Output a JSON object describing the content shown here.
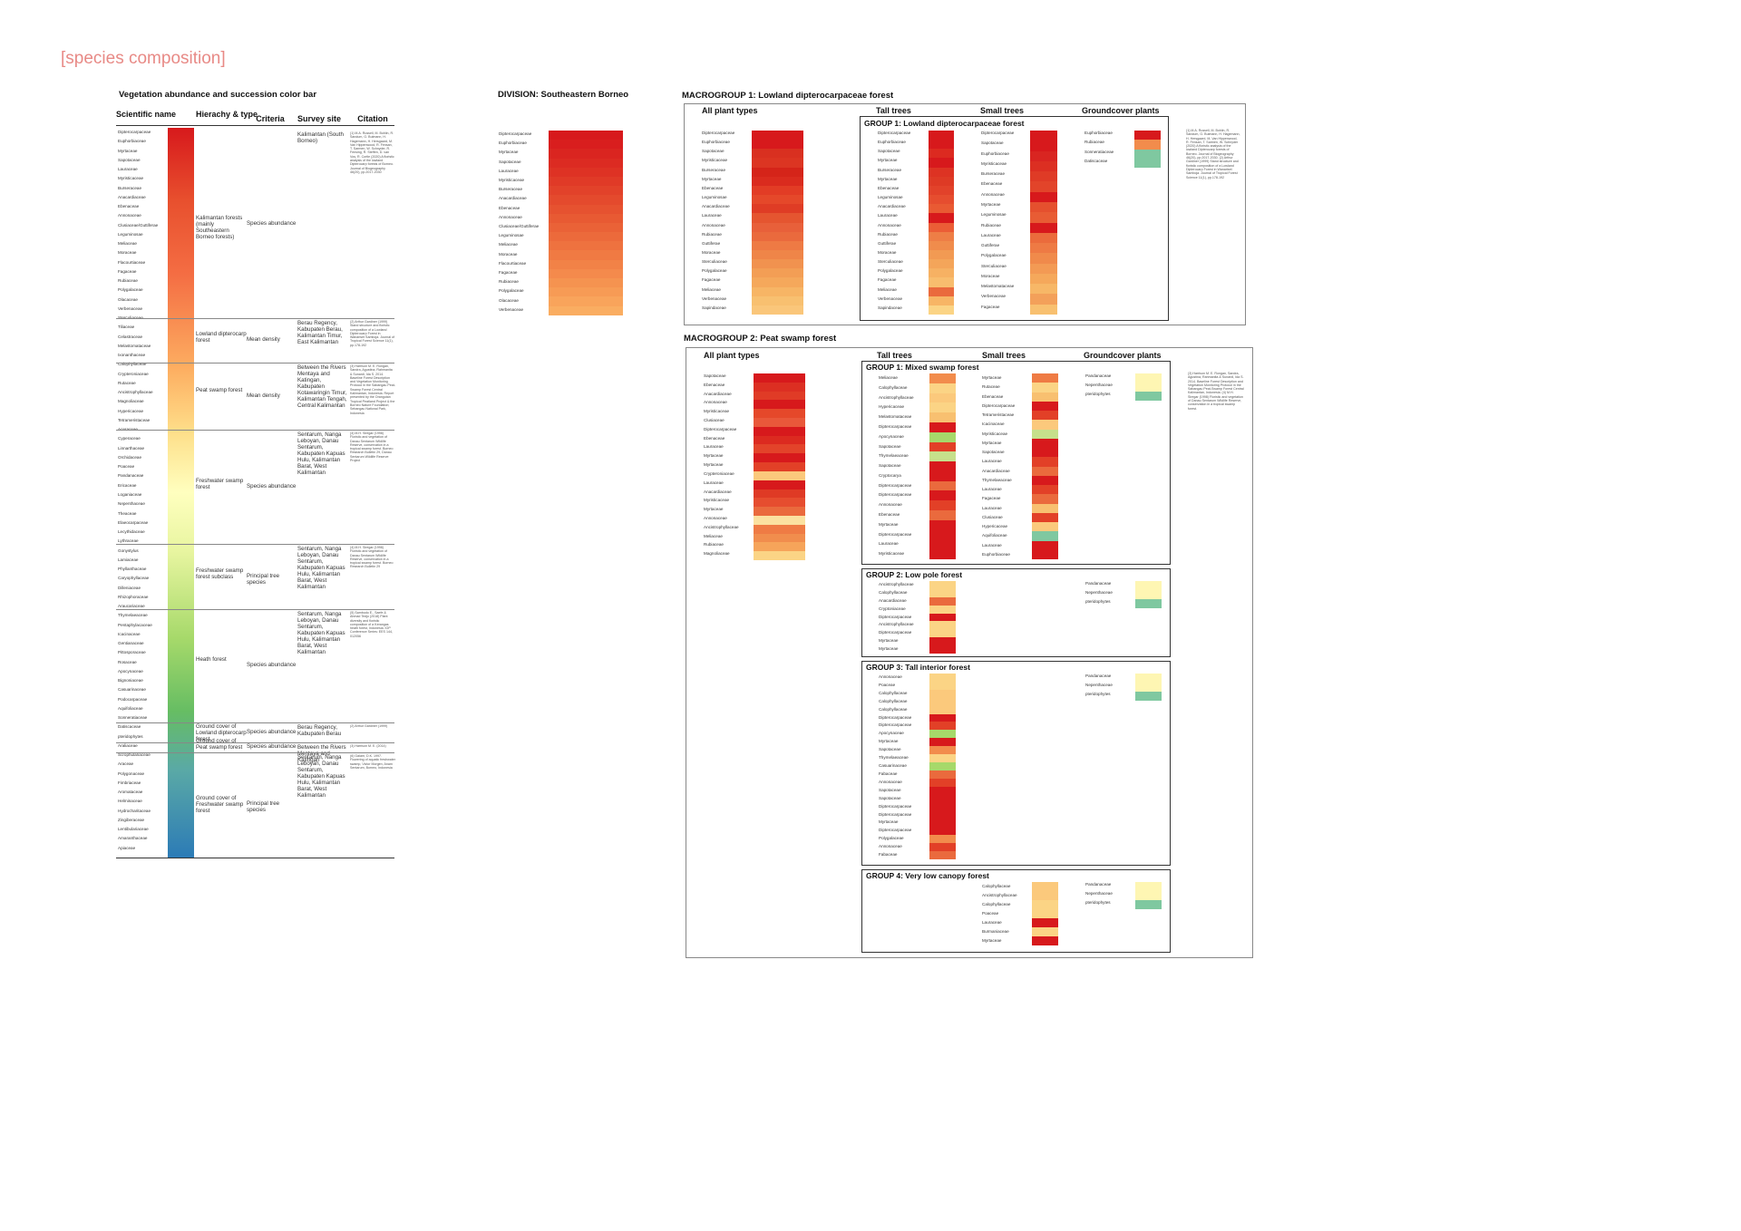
{
  "title": "[species composition]",
  "colors": {
    "title": "#e88a86",
    "scale": [
      "#d7191c",
      "#f46d43",
      "#fdae61",
      "#fee08b",
      "#ffffbf",
      "#d9ef8b",
      "#a6d96a",
      "#66bd63",
      "#2c7bb6"
    ],
    "ground_green": "#7fc8a0"
  },
  "legend": {
    "title": "Vegetation abundance and succession color bar",
    "headers": {
      "scientific": "Scientific name",
      "hierarchy": "Hierachy & type",
      "criteria": "Criteria",
      "site": "Survey site",
      "citation": "Citation"
    },
    "names": [
      "Dipterocarpaceae",
      "Euphorbiaceae",
      "Myrtaceae",
      "Sapotaceae",
      "Lauraceae",
      "Myristicaceae",
      "Burseraceae",
      "Anacardiaceae",
      "Ebenaceae",
      "Annonaceae",
      "Clusiaceae/Guttiferae",
      "Leguminosae",
      "Meliaceae",
      "Moraceae",
      "Flacourtiaceae",
      "Fagaceae",
      "Rubiaceae",
      "Polygalaceae",
      "Olacaceae",
      "Verbenaceae",
      "Sterculiaceae",
      "Tiliaceae",
      "Celastraceae",
      "Melastomataceae",
      "Ixonanthaceae",
      "Calophyllaceae",
      "Crypteroniaceae",
      "Rutaceae",
      "Ancistrophyllaceae",
      "Magnoliaceae",
      "Hypericaceae",
      "Tetrameristaceae",
      "Aceraceae",
      "Cyperaceae",
      "Linnarthaceae",
      "Orchidaceae",
      "Poaceae",
      "Pandanaceae",
      "Ericaceae",
      "Loganiaceae",
      "Nepenthaceae",
      "Theaceae",
      "Elaeocarpaceae",
      "Lecythidaceae",
      "Lythraceae",
      "Gonystylus",
      "Lamiaceae",
      "Phyllanthaceae",
      "Caryophyllaceae",
      "Dilleniaceae",
      "Rhizophoraceae",
      "Araucariaceae",
      "Thymelaeaceae",
      "Pentaphylacaceae",
      "Icacinaceae",
      "Gentianaceae",
      "Pittosporaceae",
      "Rosaceae",
      "Apocynaceae",
      "Bignoniaceae",
      "Casuarinaceae",
      "Podocarpaceae",
      "Aquifoliaceae",
      "Sonneratiaceae",
      "Datiscaceae",
      "pteridophytes",
      "Araliaceae",
      "Scrophulariaceae",
      "Araceae",
      "Polygonaceae",
      "Fimbriaceae",
      "Aromataceae",
      "Helminaceae",
      "Hydrocharitaceae",
      "Zingiberaceae",
      "Lentibulariaceae",
      "Amaranthaceae",
      "Apiaceae"
    ],
    "rows": [
      {
        "type": "Kalimantan forests (mainly Southeastern Borneo forests)",
        "criteria": "Species abundance",
        "site": "Kalimantan (South Borneo)",
        "citation": "(1) M.A. Russell, M. Bohlin, R. Sandum, G. Bulmann, H. Hagemann, H. Hersgaard, M. Van Hippenwood, R. Fensan, T. Sarmen, W. Schnyder, R. Fensing, R. Steffen, D. van Vos, R. Cortle (2020) A floristic analysis of the lowland Dipterocarp forests of Borneo. Journal of Biogeography 46(20), pp.2017-2030"
      },
      {
        "type": "Lowland dipterocarp forest",
        "criteria": "Mean density",
        "site": "Berau Regency, Kabupaten Berau, Kalimantan Timur, East Kalimantan",
        "citation": "(2) Arthur Gardiner (1999) Stand structure and floristic composition of a Lowland Dipterocarp Forest in Wanariset Samboja. Journal of Tropical Forest Science 11(1), pp.178-192"
      },
      {
        "type": "Peat swamp forest",
        "criteria": "Mean density",
        "site": "Between the Rivers Mentaya and Katingan, Kabupaten Kotawaringin Timur, Kalimantan Tengah, Central Kalimantan",
        "citation": "(3) Harrison M. E. Rongan, Sandra, Agustina, Rahmanita & Sunardi, Ida S. 2014. Baseline Forest Description and Vegetation Monitoring Protocol in the Sabangau Peat-Swamp Forest Central Kalimantan, Indonesia. Report presented by the Orangutan Tropical Peatland Project & the Borneo Nature Foundation; Sebangau National Park, Indonesia"
      },
      {
        "type": "Freshwater swamp forest",
        "criteria": "Species abundance",
        "site": "Sentarum, Nanga Leboyan, Danau Sentarum, Kabupaten Kapuas Hulu, Kalimantan Barat, West Kalimantan",
        "citation": "(4) M.H. Siregar (1998) Floristic and vegetation of Danau Sentarum Wildlife Reserve, conservation in a tropical swamp forest. Borneo Research Bulletin 29, Danau Sentarum Wildlife Reserve Project"
      },
      {
        "type": "Freshwater swamp forest subclass",
        "criteria": "Principal tree species",
        "site": "Sentarum, Nanga Leboyan, Danau Sentarum, Kabupaten Kapuas Hulu, Kalimantan Barat, West Kalimantan",
        "citation": "(4) M.H. Siregar (1998) Floristic and vegetation of Danau Sentarum Wildlife Reserve, conservation in a tropical swamp forest. Borneo Research Bulletin 29"
      },
      {
        "type": "Heath forest",
        "criteria": "Species abundance",
        "site": "Sentarum, Nanga Leboyan, Danau Sentarum, Kabupaten Kapuas Hulu, Kalimantan Barat, West Kalimantan",
        "citation": "(5) Sambodo E., Saefe & Ahmad Tedjo (2018) Plant diversity and floristic composition of a Kerangas heath forest, Indonesia. IOP Conference Series: EES 144, 012056"
      },
      {
        "type": "Ground cover of Lowland dipterocarp forest",
        "criteria": "Species abundance",
        "site": "Berau Regency, Kabupaten Berau",
        "citation": "(2) Arthur Gardiner (1999)"
      },
      {
        "type": "Ground cover of Peat swamp forest",
        "criteria": "Species abundance",
        "site": "Between the Rivers Mentaya and Katingan",
        "citation": "(3) Harrison M. E. (2014)"
      },
      {
        "type": "Ground cover of Freshwater swamp forest",
        "criteria": "Principal tree species",
        "site": "Sentarum, Nanga Leboyan, Danau Sentarum, Kabupaten Kapuas Hulu, Kalimantan Barat, West Kalimantan",
        "citation": "(6) Galam, D.K. 1997. Flowering of aquatic freshwater swamp, Victor Morgen, Anam Sentarum, Borneo, Indonesia"
      }
    ]
  },
  "division": {
    "title": "DIVISION: Southeastern Borneo",
    "names": [
      "Dipterocarpaceae",
      "Euphorbiaceae",
      "Myrtaceae",
      "Sapotaceae",
      "Lauraceae",
      "Myristicaceae",
      "Burseraceae",
      "Anacardiaceae",
      "Ebenaceae",
      "Annonaceae",
      "Clusiaceae/Guttiferae",
      "Leguminosae",
      "Meliaceae",
      "Moraceae",
      "Flacourtiaceae",
      "Fagaceae",
      "Rubiaceae",
      "Polygalaceae",
      "Olacaceae",
      "Verbenaceae"
    ]
  },
  "mg1": {
    "title": "MACROGROUP 1: Lowland dipterocarpaceae forest",
    "headers": [
      "All plant types",
      "Tall trees",
      "Small trees",
      "Groundcover plants"
    ],
    "group_title": "GROUP 1: Lowland dipterocarpaceae forest",
    "all": {
      "names": [
        "Dipterocarpaceae",
        "Euphorbiaceae",
        "Sapotaceae",
        "Myristicaceae",
        "Burseraceae",
        "Myrtaceae",
        "Ebenaceae",
        "Leguminosae",
        "Anacardiaceae",
        "Lauraceae",
        "Annonaceae",
        "Rubiaceae",
        "Guttiferae",
        "Moraceae",
        "Sterculiaceae",
        "Polygalaceae",
        "Fagaceae",
        "Meliaceae",
        "Verbenaceae",
        "Sapindaceae"
      ],
      "colors": [
        "#d7191c",
        "#d7191c",
        "#d93020",
        "#dc3522",
        "#d52419",
        "#da2b1e",
        "#e23c25",
        "#e5482a",
        "#df3c25",
        "#e55530",
        "#e8603a",
        "#ea6a3d",
        "#ee7a44",
        "#ef8548",
        "#f1924f",
        "#f39e55",
        "#f5a85b",
        "#f7b565",
        "#f8c070",
        "#fac67a"
      ]
    },
    "tall": {
      "names": [
        "Dipterocarpaceae",
        "Euphorbiaceae",
        "Sapotaceae",
        "Myrtaceae",
        "Burseraceae",
        "Myrtaceae",
        "Ebenaceae",
        "Leguminosae",
        "Anacardiaceae",
        "Lauraceae",
        "Annonaceae",
        "Rubiaceae",
        "Guttiferae",
        "Moraceae",
        "Sterculiaceae",
        "Polygalaceae",
        "Fagaceae",
        "Meliaceae",
        "Verbenaceae",
        "Sapindaceae"
      ],
      "colors": [
        "#d7191c",
        "#d7191c",
        "#dc2a20",
        "#d7191c",
        "#dd3323",
        "#de3a25",
        "#e2422a",
        "#e64d2f",
        "#e95a33",
        "#d7191c",
        "#eb5d36",
        "#ee7e46",
        "#f08c4c",
        "#f29a53",
        "#f4a55a",
        "#f6b163",
        "#f8bd6e",
        "#ea6a3d",
        "#f7b565",
        "#fbd485"
      ]
    },
    "small": {
      "names": [
        "Dipterocarpaceae",
        "Sapotaceae",
        "Euphorbiaceae",
        "Myristicaceae",
        "Burseraceae",
        "Ebenaceae",
        "Annonaceae",
        "Myrtaceae",
        "Leguminosae",
        "Rubiaceae",
        "Lauraceae",
        "Guttiferae",
        "Polygalaceae",
        "Sterculiaceae",
        "Moraceae",
        "Melastomataceae",
        "Verbenaceae",
        "Fagaceae"
      ],
      "colors": [
        "#d7191c",
        "#d7191c",
        "#d92521",
        "#dc2f22",
        "#df3b26",
        "#e2442a",
        "#d7191c",
        "#e5502e",
        "#e85c34",
        "#d7191c",
        "#eb6b3c",
        "#ee7a44",
        "#f08a4b",
        "#f39a54",
        "#f5a85b",
        "#f7b767",
        "#f3a05a",
        "#f8c070"
      ]
    },
    "ground": {
      "names": [
        "Euphorbiaceae",
        "Rubiaceae",
        "Sonneratiaceae",
        "Datiscaceae"
      ],
      "colors": [
        "#d7191c",
        "#f28c4c",
        "#7fc8a0",
        "#7fc8a0"
      ]
    },
    "citation": "(1) M.A. Russell, M. Bohlin, R. Sandum, G. Bulmann, H. Hagemann, H. Hersgaard, M. Van Hippenwood, R. Fensan, T. Sarmen, W. Schnyder (2020) A floristic analysis of the lowland Dipterocarp forests of Borneo. Journal of Biogeography 46(20), pp.2017-2030. (2) Arthur Gardiner (1999) Stand structure and floristic composition of a Lowland Dipterocarp Forest in Wanariset Samboja. Journal of Tropical Forest Science 11(1), pp.178-192"
  },
  "mg2": {
    "title": "MACROGROUP 2: Peat swamp forest",
    "headers": [
      "All plant types",
      "Tall trees",
      "Small trees",
      "Groundcover plants"
    ],
    "citation": "(3) Harrison M. E. Rongan, Sandra, Agustina, Rahmanita & Sunardi, Ida S. 2014. Baseline Forest Description and Vegetation Monitoring Protocol in the Sabangau Peat-Swamp Forest Central Kalimantan, Indonesia. (4) M.H. Siregar (1998) Floristic and vegetation of Danau Sentarum Wildlife Reserve, conservation in a tropical swamp forest.",
    "all": {
      "names": [
        "Sapotaceae",
        "Ebenaceae",
        "Anacardiaceae",
        "Annonaceae",
        "Myristicaceae",
        "Clusiaceae",
        "Dipterocarpaceae",
        "Ebenaceae",
        "Lauraceae",
        "Myrtaceae",
        "Myrtaceae",
        "Crypteroniaceae",
        "Lauraceae",
        "Anacardiaceae",
        "Myristicaceae",
        "Myrtaceae",
        "Annonaceae",
        "Ancistrophyllaceae",
        "Meliaceae",
        "Rubiaceae",
        "Magnoliaceae"
      ],
      "colors": [
        "#d7191c",
        "#dc2f22",
        "#e03b26",
        "#d7191c",
        "#e5482a",
        "#e9583a",
        "#d7191c",
        "#dc2a20",
        "#e3432a",
        "#d7191c",
        "#e24027",
        "#fbc97c",
        "#d7191c",
        "#df3a25",
        "#e64d2f",
        "#ea6a3d",
        "#fbe1a0",
        "#ef7b44",
        "#f18d4d",
        "#f6a45a",
        "#fbd485"
      ]
    },
    "groups": [
      {
        "title": "GROUP 1: Mixed swamp forest",
        "tall": {
          "names": [
            "Meliaceae",
            "Calophyllaceae",
            "Ancistrophyllaceae",
            "Hypericaceae",
            "Melastomataceae",
            "Dipterocarpaceae",
            "Apocynaceae",
            "Sapotaceae",
            "Thymelaeaceae",
            "Sapotaceae",
            "Cryptocarya",
            "Dipterocarpaceae",
            "Dipterocarpaceae",
            "Annonaceae",
            "Ebenaceae",
            "Myrtaceae",
            "Dipterocarpaceae",
            "Lauraceae",
            "Myristicaceae"
          ],
          "colors": [
            "#f28c4c",
            "#fbd485",
            "#fbc97c",
            "#fbd485",
            "#f8c070",
            "#d7191c",
            "#a6d96a",
            "#e24027",
            "#c6e08b",
            "#d7191c",
            "#d7191c",
            "#ea6a3d",
            "#d7191c",
            "#e24027",
            "#ea6a3d",
            "#d7191c",
            "#d7191c",
            "#d7191c",
            "#d7191c"
          ]
        },
        "small": {
          "names": [
            "Myrtaceae",
            "Rutaceae",
            "Ebenaceae",
            "Dipterocarpaceae",
            "Tetrameristaceae",
            "Icacinaceae",
            "Myristicaceae",
            "Myrtaceae",
            "Sapotaceae",
            "Lauraceae",
            "Anacardiaceae",
            "Thymelaeaceae",
            "Lauraceae",
            "Fagaceae",
            "Lauraceae",
            "Clusiaceae",
            "Hypericaceae",
            "Aquifoliaceae",
            "Lauraceae",
            "Euphorbiaceae"
          ],
          "colors": [
            "#ef7b44",
            "#fbd485",
            "#f8c070",
            "#d7191c",
            "#e24027",
            "#fbc97c",
            "#c6e08b",
            "#d7191c",
            "#d7191c",
            "#e24027",
            "#ea6a3d",
            "#d7191c",
            "#e24027",
            "#ea6a3d",
            "#f8c070",
            "#e24027",
            "#fbc97c",
            "#7fc8a0",
            "#d7191c",
            "#d7191c"
          ]
        },
        "ground": {
          "names": [
            "Pandanaceae",
            "Nepenthaceae",
            "pteridophytes"
          ],
          "colors": [
            "#fef6b3",
            "#fef6b3",
            "#7fc8a0"
          ]
        }
      },
      {
        "title": "GROUP 2: Low pole forest",
        "tall": {
          "names": [
            "Ancistrophyllaceae",
            "Calophyllaceae",
            "Anacardiaceae",
            "Cryptoniaceae",
            "Dipterocarpaceae",
            "Ancistrophyllaceae",
            "Dipterocarpaceae",
            "Myrtaceae",
            "Myrtaceae"
          ],
          "colors": [
            "#fbd485",
            "#fbd485",
            "#ea6a3d",
            "#fbd485",
            "#d7191c",
            "#fbd485",
            "#fbd485",
            "#d7191c",
            "#d7191c"
          ]
        },
        "ground": {
          "names": [
            "Pandanaceae",
            "Nepenthaceae",
            "pteridophytes"
          ],
          "colors": [
            "#fef6b3",
            "#fef6b3",
            "#7fc8a0"
          ]
        }
      },
      {
        "title": "GROUP 3: Tall interior forest",
        "tall": {
          "names": [
            "Annonaceae",
            "Poaceae",
            "Calophyllaceae",
            "Calophyllaceae",
            "Calophyllaceae",
            "Dipterocarpaceae",
            "Dipterocarpaceae",
            "Apocynaceae",
            "Myrtaceae",
            "Sapotaceae",
            "Thymelaeaceae",
            "Casuarinaceae",
            "Fabaceae",
            "Annonaceae",
            "Sapotaceae",
            "Sapotaceae",
            "Dipterocarpaceae",
            "Dipterocarpaceae",
            "Myrtaceae",
            "Dipterocarpaceae",
            "Polygalaceae",
            "Annonaceae",
            "Fabaceae"
          ],
          "colors": [
            "#fbd485",
            "#fbd485",
            "#fbc97c",
            "#fbc97c",
            "#fbc97c",
            "#d7191c",
            "#e24027",
            "#a6d96a",
            "#d7191c",
            "#f28c4c",
            "#fbd485",
            "#a6d96a",
            "#ea6a3d",
            "#e24027",
            "#d7191c",
            "#d7191c",
            "#d7191c",
            "#d7191c",
            "#d7191c",
            "#d7191c",
            "#f28c4c",
            "#e24027",
            "#ea6a3d"
          ]
        },
        "ground": {
          "names": [
            "Pandanaceae",
            "Nepenthaceae",
            "pteridophytes"
          ],
          "colors": [
            "#fef6b3",
            "#fef6b3",
            "#7fc8a0"
          ]
        }
      },
      {
        "title": "GROUP 4: Very low canopy forest",
        "small": {
          "names": [
            "Calophyllaceae",
            "Ancistrophyllaceae",
            "Calophyllaceae",
            "Poaceae",
            "Lauraceae",
            "Burmaniaceae",
            "Myrtaceae"
          ],
          "colors": [
            "#fbc97c",
            "#fbc97c",
            "#fbd485",
            "#fbd485",
            "#d7191c",
            "#fbd485",
            "#d7191c"
          ]
        },
        "ground": {
          "names": [
            "Pandanaceae",
            "Nepenthaceae",
            "pteridophytes"
          ],
          "colors": [
            "#fef6b3",
            "#fef6b3",
            "#7fc8a0"
          ]
        }
      }
    ]
  }
}
